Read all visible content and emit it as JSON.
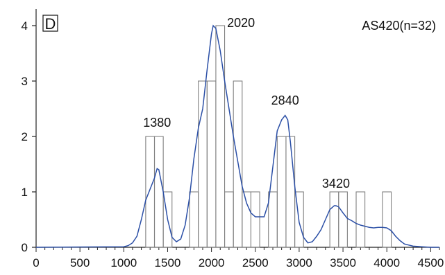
{
  "chart_data": {
    "type": "bar",
    "panel_label": "D",
    "sample_label": "AS420(n=32)",
    "xlim": [
      0,
      4600
    ],
    "ylim": [
      0,
      4.3
    ],
    "x_ticks": [
      0,
      500,
      1000,
      1500,
      2000,
      2500,
      3000,
      3500,
      4000,
      4500
    ],
    "y_ticks": [
      0,
      1,
      2,
      3,
      4
    ],
    "histogram": {
      "bin_width": 100,
      "bins": [
        {
          "start": 1250,
          "count": 2
        },
        {
          "start": 1350,
          "count": 2
        },
        {
          "start": 1450,
          "count": 1
        },
        {
          "start": 1750,
          "count": 1
        },
        {
          "start": 1850,
          "count": 3
        },
        {
          "start": 1950,
          "count": 3
        },
        {
          "start": 2050,
          "count": 4
        },
        {
          "start": 2150,
          "count": 1
        },
        {
          "start": 2250,
          "count": 3
        },
        {
          "start": 2350,
          "count": 1
        },
        {
          "start": 2450,
          "count": 1
        },
        {
          "start": 2650,
          "count": 1
        },
        {
          "start": 2750,
          "count": 2
        },
        {
          "start": 2850,
          "count": 2
        },
        {
          "start": 2950,
          "count": 1
        },
        {
          "start": 3350,
          "count": 1
        },
        {
          "start": 3450,
          "count": 1
        },
        {
          "start": 3650,
          "count": 1
        },
        {
          "start": 3950,
          "count": 1
        }
      ]
    },
    "density_curve": {
      "x": [
        0,
        1000,
        1050,
        1100,
        1150,
        1200,
        1250,
        1300,
        1350,
        1380,
        1400,
        1450,
        1500,
        1550,
        1600,
        1650,
        1700,
        1750,
        1800,
        1850,
        1900,
        1950,
        2000,
        2020,
        2050,
        2100,
        2150,
        2200,
        2250,
        2300,
        2350,
        2400,
        2450,
        2500,
        2550,
        2600,
        2650,
        2700,
        2750,
        2800,
        2840,
        2870,
        2900,
        2950,
        3000,
        3050,
        3100,
        3150,
        3200,
        3250,
        3300,
        3350,
        3400,
        3420,
        3450,
        3500,
        3550,
        3600,
        3650,
        3700,
        3750,
        3800,
        3850,
        3900,
        3950,
        4000,
        4050,
        4100,
        4150,
        4200,
        4300,
        4400,
        4500,
        4600
      ],
      "y": [
        0,
        0.01,
        0.03,
        0.08,
        0.2,
        0.5,
        0.85,
        1.05,
        1.25,
        1.42,
        1.4,
        1.0,
        0.5,
        0.18,
        0.1,
        0.15,
        0.4,
        0.9,
        1.6,
        2.15,
        2.5,
        3.2,
        3.85,
        4.0,
        3.95,
        3.55,
        3.0,
        2.5,
        2.0,
        1.55,
        1.1,
        0.8,
        0.62,
        0.55,
        0.55,
        0.55,
        0.8,
        1.45,
        2.1,
        2.3,
        2.38,
        2.3,
        1.9,
        1.1,
        0.45,
        0.18,
        0.08,
        0.1,
        0.2,
        0.32,
        0.5,
        0.68,
        0.75,
        0.75,
        0.73,
        0.62,
        0.52,
        0.48,
        0.43,
        0.4,
        0.38,
        0.36,
        0.35,
        0.36,
        0.36,
        0.35,
        0.3,
        0.2,
        0.12,
        0.06,
        0.02,
        0.01,
        0,
        0
      ]
    },
    "peak_labels": [
      {
        "x": 1380,
        "y": 2.1,
        "text": "1380"
      },
      {
        "x": 2020,
        "y": 4.0,
        "text": "2020"
      },
      {
        "x": 2840,
        "y": 2.5,
        "text": "2840"
      },
      {
        "x": 3420,
        "y": 1.0,
        "text": "3420"
      }
    ],
    "colors": {
      "curve": "#2b4fa6",
      "bars": "#808080",
      "axes": "#222222"
    }
  }
}
